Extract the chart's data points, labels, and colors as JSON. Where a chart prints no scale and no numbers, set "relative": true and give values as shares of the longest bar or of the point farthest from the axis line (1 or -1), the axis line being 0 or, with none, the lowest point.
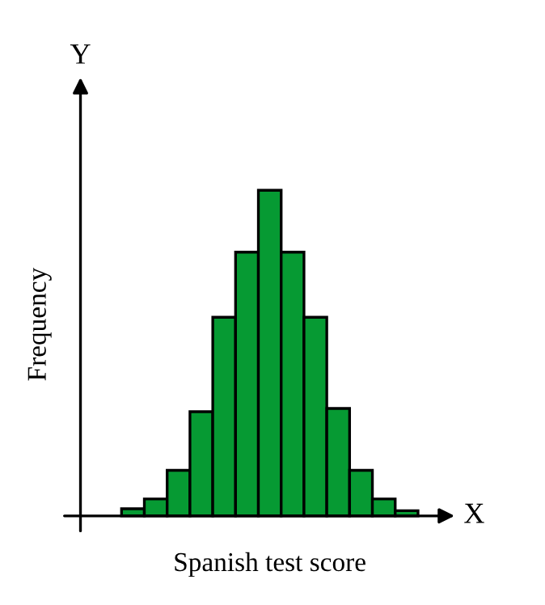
{
  "chart_data": {
    "type": "bar",
    "relative": true,
    "xlabel": "Spanish test score",
    "ylabel": "Frequency",
    "categories": [
      null,
      null,
      null,
      null,
      null,
      null,
      null,
      null,
      null,
      null,
      null,
      null,
      null
    ],
    "values": [
      0.022,
      0.052,
      0.14,
      0.32,
      0.61,
      0.81,
      1,
      0.81,
      0.61,
      0.33,
      0.14,
      0.052,
      0.016
    ],
    "color": "#069a33",
    "annotations": [
      "Y",
      "X"
    ]
  }
}
